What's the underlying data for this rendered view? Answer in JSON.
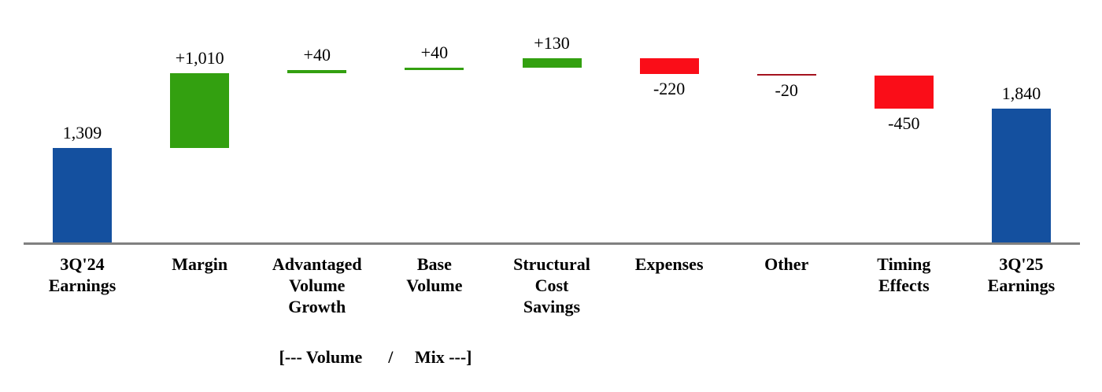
{
  "chart_data": {
    "type": "bar",
    "subtype": "waterfall",
    "title": "",
    "xlabel": "",
    "ylabel": "",
    "ylim": [
      0,
      2700
    ],
    "grid": false,
    "legend": false,
    "categories": [
      "3Q'24 Earnings",
      "Margin",
      "Advantaged Volume Growth",
      "Base Volume",
      "Structural Cost Savings",
      "Expenses",
      "Other",
      "Timing Effects",
      "3Q'25 Earnings"
    ],
    "bars": [
      {
        "label_lines": [
          "3Q'24",
          "Earnings"
        ],
        "value": 1309,
        "display": "1,309",
        "kind": "total"
      },
      {
        "label_lines": [
          "Margin"
        ],
        "value": 1010,
        "display": "+1,010",
        "kind": "increase"
      },
      {
        "label_lines": [
          "Advantaged",
          "Volume",
          "Growth"
        ],
        "value": 40,
        "display": "+40",
        "kind": "increase"
      },
      {
        "label_lines": [
          "Base",
          "Volume"
        ],
        "value": 40,
        "display": "+40",
        "kind": "increase"
      },
      {
        "label_lines": [
          "Structural",
          "Cost",
          "Savings"
        ],
        "value": 130,
        "display": "+130",
        "kind": "increase"
      },
      {
        "label_lines": [
          "Expenses"
        ],
        "value": -220,
        "display": "-220",
        "kind": "decrease"
      },
      {
        "label_lines": [
          "Other"
        ],
        "value": -20,
        "display": "-20",
        "kind": "decrease",
        "color": "#A4121E"
      },
      {
        "label_lines": [
          "Timing",
          "Effects"
        ],
        "value": -450,
        "display": "-450",
        "kind": "decrease"
      },
      {
        "label_lines": [
          "3Q'25",
          "Earnings"
        ],
        "value": 1840,
        "display": "1,840",
        "kind": "total"
      }
    ],
    "colors": {
      "total": "#14509F",
      "increase": "#33A010",
      "decrease": "#FA0D18",
      "axis": "#808080",
      "text": "#000000"
    },
    "annotation": {
      "text": "[--- Volume      /     Mix ---]"
    }
  }
}
